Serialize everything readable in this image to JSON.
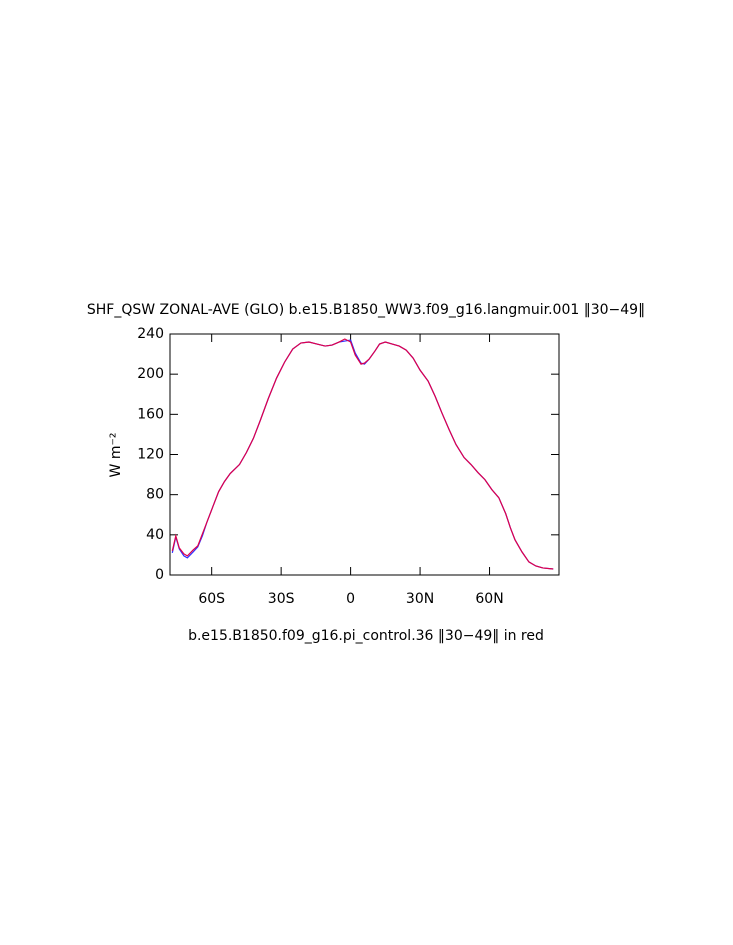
{
  "chart_data": {
    "type": "line",
    "title": "SHF_QSW ZONAL-AVE (GLO) b.e15.B1850_WW3.f09_g16.langmuir.001 ‖30−49‖",
    "y_label": "W m⁻²",
    "subtitle": "b.e15.B1850.f09_g16.pi_control.36 ‖30−49‖ in red",
    "xlim": [
      -78,
      90
    ],
    "ylim": [
      0,
      240
    ],
    "xticks": [
      {
        "value": -60,
        "label": "60S"
      },
      {
        "value": -30,
        "label": "30S"
      },
      0,
      {
        "value": 30,
        "label": "30N"
      },
      {
        "value": 60,
        "label": "60N"
      }
    ],
    "yticks": [
      0,
      40,
      80,
      120,
      160,
      200,
      240
    ],
    "x": [
      -77,
      -75.5,
      -74,
      -72,
      -70.5,
      -68,
      -66,
      -64,
      -62,
      -59.5,
      -57,
      -54.5,
      -52,
      -48,
      -45,
      -42,
      -39,
      -35.5,
      -32,
      -28.5,
      -25,
      -21.5,
      -18,
      -14.5,
      -11,
      -8,
      -5,
      -2.5,
      0,
      2,
      4.5,
      6,
      8,
      10.5,
      12.5,
      15,
      18,
      21,
      24,
      27,
      30,
      33.5,
      36.5,
      39.5,
      42.5,
      45.5,
      49,
      52,
      55,
      58,
      61,
      64,
      67,
      69,
      71,
      74,
      77,
      80,
      83,
      87.5
    ],
    "series": [
      {
        "name": "b.e15.B1850_WW3.f09_g16.langmuir.001",
        "color": "#3030ff",
        "values": [
          22,
          38,
          26,
          19,
          17,
          23,
          28,
          39,
          53,
          68,
          83,
          93,
          101,
          110,
          122,
          136,
          154,
          176,
          196,
          212,
          225,
          231,
          232,
          230,
          228,
          229,
          232,
          233,
          234,
          221,
          211,
          210,
          215,
          223,
          230,
          232,
          230,
          228,
          224,
          216,
          204,
          193,
          178,
          161,
          145,
          130,
          117,
          110,
          102,
          95,
          85,
          77,
          61,
          47,
          35,
          23,
          13,
          9,
          7,
          6
        ]
      },
      {
        "name": "b.e15.B1850.f09_g16.pi_control.36",
        "color": "#e0004a",
        "values": [
          24,
          39,
          27,
          21,
          19,
          25,
          29,
          41,
          53,
          68,
          83,
          93,
          101,
          110,
          122,
          136,
          154,
          176,
          196,
          212,
          225,
          231,
          232,
          230,
          228,
          229,
          232,
          235,
          232,
          219,
          210,
          211,
          215,
          223,
          230,
          232,
          230,
          228,
          224,
          216,
          204,
          193,
          178,
          161,
          145,
          130,
          117,
          110,
          102,
          95,
          85,
          77,
          61,
          47,
          35,
          23,
          13,
          9,
          7,
          6
        ]
      }
    ]
  }
}
